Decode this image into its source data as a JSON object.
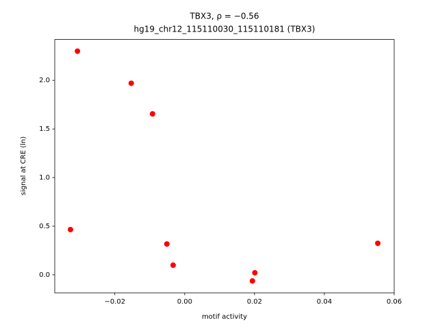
{
  "chart_data": {
    "type": "scatter",
    "title": "TBX3, ρ = −0.56",
    "subtitle": "hg19_chr12_115110030_115110181 (TBX3)",
    "x_label": "motif activity",
    "y_label": "signal at CRE (ln)",
    "color": "#ff0000",
    "x": [
      -0.0307,
      -0.0153,
      -0.0092,
      -0.0327,
      -0.0051,
      -0.0033,
      0.0194,
      0.0201,
      0.0553
    ],
    "values": [
      2.3,
      1.97,
      1.655,
      0.465,
      0.317,
      0.099,
      -0.063,
      0.021,
      0.324
    ],
    "xlim": [
      -0.0372,
      0.06
    ],
    "ylim": [
      -0.185,
      2.42
    ],
    "xticks": [
      {
        "value": -0.02,
        "label": "−0.02"
      },
      {
        "value": 0,
        "label": "0.00"
      },
      {
        "value": 0.02,
        "label": "0.02"
      },
      {
        "value": 0.04,
        "label": "0.04"
      },
      {
        "value": 0.06,
        "label": "0.06"
      }
    ],
    "yticks": [
      {
        "value": 0,
        "label": "0.0"
      },
      {
        "value": 0.5,
        "label": "0.5"
      },
      {
        "value": 1,
        "label": "1.0"
      },
      {
        "value": 1.5,
        "label": "1.5"
      },
      {
        "value": 2,
        "label": "2.0"
      }
    ]
  }
}
